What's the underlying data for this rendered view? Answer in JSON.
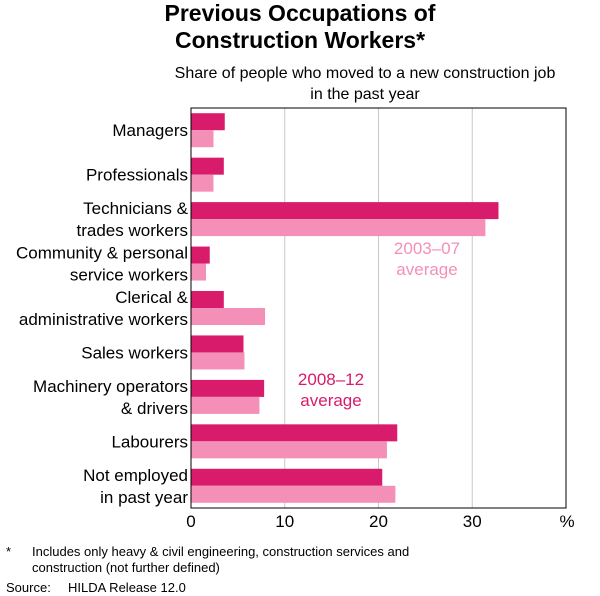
{
  "title_line1": "Previous Occupations of",
  "title_line2": "Construction Workers*",
  "subtitle_line1": "Share of people who moved to a new construction job",
  "subtitle_line2": "in the past year",
  "footnote": {
    "marker": "*",
    "line1": "Includes only heavy & civil engineering, construction services and",
    "line2": "construction (not further defined)",
    "source_label": "Source:",
    "source_text": "HILDA Release 12.0"
  },
  "chart_data": {
    "type": "bar",
    "orientation": "horizontal",
    "categories": [
      [
        "Managers"
      ],
      [
        "Professionals"
      ],
      [
        "Technicians &",
        "trades workers"
      ],
      [
        "Community & personal",
        "service workers"
      ],
      [
        "Clerical &",
        "administrative workers"
      ],
      [
        "Sales workers"
      ],
      [
        "Machinery operators",
        "& drivers"
      ],
      [
        "Labourers"
      ],
      [
        "Not employed",
        "in past year"
      ]
    ],
    "series": [
      {
        "name": "2008–12 average",
        "label_lines": [
          "2008–12",
          "average"
        ],
        "color": "#d81b6a",
        "values": [
          3.6,
          3.5,
          32.8,
          2.0,
          3.5,
          5.6,
          7.8,
          22.0,
          20.4
        ]
      },
      {
        "name": "2003–07 average",
        "label_lines": [
          "2003–07",
          "average"
        ],
        "color": "#f48fb8",
        "values": [
          2.4,
          2.4,
          31.4,
          1.6,
          7.9,
          5.7,
          7.3,
          20.9,
          21.8
        ]
      }
    ],
    "xlim": [
      0,
      40
    ],
    "xticks": [
      0,
      10,
      20,
      30
    ],
    "xunit": "%",
    "grid": true
  }
}
